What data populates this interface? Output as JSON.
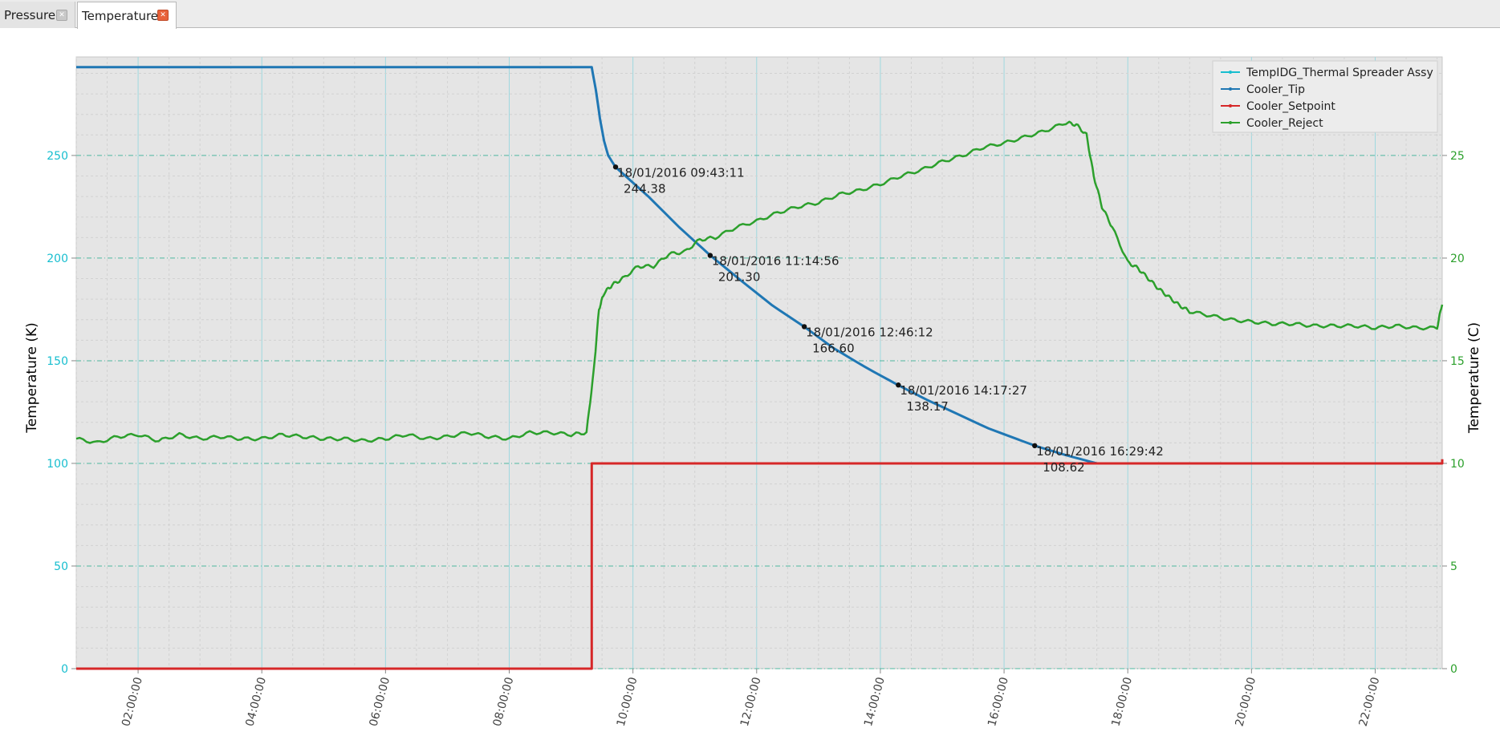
{
  "tabs": [
    {
      "label": "Pressure",
      "active": false,
      "close_icon": "close-icon"
    },
    {
      "label": "Temperature",
      "active": true,
      "close_icon": "close-icon"
    }
  ],
  "chart_data": {
    "type": "line",
    "title": "",
    "xlabel": "",
    "x_range": [
      "01:00:00",
      "23:05:00"
    ],
    "x_ticks": [
      "02:00:00",
      "04:00:00",
      "06:00:00",
      "08:00:00",
      "10:00:00",
      "12:00:00",
      "14:00:00",
      "16:00:00",
      "18:00:00",
      "20:00:00",
      "22:00:00"
    ],
    "left_axis": {
      "label": "Temperature (K)",
      "color": "#17becf",
      "range": [
        0,
        298
      ],
      "ticks": [
        "0",
        "50",
        "100",
        "150",
        "200",
        "250"
      ]
    },
    "right_axis": {
      "label": "Temperature (C)",
      "color": "#2ca02c",
      "range": [
        0,
        29.8
      ],
      "ticks": [
        "0",
        "5",
        "10",
        "15",
        "20",
        "25"
      ]
    },
    "grid": true,
    "legend": {
      "position": "top-right"
    },
    "series": [
      {
        "name": "TempIDG_Thermal Spreader Assy",
        "color": "#17becf",
        "axis": "left",
        "x": [],
        "y": []
      },
      {
        "name": "Cooler_Tip",
        "color": "#1f77b4",
        "axis": "left",
        "x": [
          "01:00",
          "09:20",
          "09:24",
          "09:28",
          "09:32",
          "09:36",
          "09:43",
          "10:15",
          "10:45",
          "11:15",
          "11:45",
          "12:15",
          "12:46",
          "13:15",
          "13:45",
          "14:17",
          "14:45",
          "15:15",
          "15:45",
          "16:30",
          "17:00",
          "17:30"
        ],
        "y": [
          293,
          293,
          282,
          268,
          257,
          250,
          244.4,
          230,
          215,
          201.3,
          189,
          177,
          166.6,
          156,
          147,
          138.2,
          131,
          124,
          117,
          108.6,
          104,
          100
        ]
      },
      {
        "name": "Cooler_Setpoint",
        "color": "#d62728",
        "axis": "left",
        "x": [
          "01:00",
          "09:20",
          "09:20",
          "23:05",
          "23:05"
        ],
        "y": [
          0,
          0,
          100,
          100,
          102
        ]
      },
      {
        "name": "Cooler_Reject",
        "color": "#2ca02c",
        "axis": "right",
        "x": [
          "01:00",
          "01:20",
          "01:40",
          "02:00",
          "02:20",
          "02:40",
          "03:00",
          "03:20",
          "03:40",
          "04:00",
          "04:20",
          "04:40",
          "05:00",
          "05:20",
          "05:40",
          "06:00",
          "06:20",
          "06:40",
          "07:00",
          "07:20",
          "07:40",
          "08:00",
          "08:20",
          "08:40",
          "09:00",
          "09:15",
          "09:22",
          "09:27",
          "09:32",
          "09:40",
          "09:50",
          "10:05",
          "10:20",
          "10:35",
          "10:50",
          "11:05",
          "11:20",
          "11:40",
          "12:00",
          "12:20",
          "12:40",
          "13:00",
          "13:20",
          "13:40",
          "14:00",
          "14:20",
          "14:40",
          "15:00",
          "15:20",
          "15:40",
          "16:00",
          "16:20",
          "16:40",
          "17:00",
          "17:10",
          "17:20",
          "17:27",
          "17:35",
          "17:45",
          "18:00",
          "18:10",
          "18:20",
          "18:30",
          "18:40",
          "18:50",
          "19:00",
          "19:20",
          "19:40",
          "20:00",
          "20:20",
          "20:40",
          "21:00",
          "21:20",
          "21:40",
          "22:00",
          "22:20",
          "22:40",
          "23:00",
          "23:05"
        ],
        "y": [
          11.2,
          11.0,
          11.3,
          11.4,
          11.1,
          11.4,
          11.2,
          11.3,
          11.2,
          11.2,
          11.4,
          11.3,
          11.2,
          11.2,
          11.1,
          11.2,
          11.4,
          11.2,
          11.3,
          11.5,
          11.3,
          11.2,
          11.5,
          11.5,
          11.4,
          11.5,
          14.5,
          17.5,
          18.3,
          18.7,
          19.0,
          19.6,
          19.6,
          20.2,
          20.3,
          20.9,
          21.0,
          21.5,
          21.8,
          22.2,
          22.5,
          22.7,
          23.1,
          23.3,
          23.6,
          24.0,
          24.3,
          24.7,
          25.0,
          25.4,
          25.6,
          25.9,
          26.2,
          26.6,
          26.5,
          26.0,
          24.0,
          22.5,
          21.5,
          19.8,
          19.5,
          19.0,
          18.5,
          18.1,
          17.7,
          17.4,
          17.2,
          17.0,
          16.9,
          16.8,
          16.8,
          16.7,
          16.7,
          16.7,
          16.6,
          16.7,
          16.6,
          16.6,
          17.8
        ]
      }
    ],
    "annotations": [
      {
        "label": "18/01/2016 09:43:11",
        "value": "244.38",
        "x": "09:43:11",
        "y": 244.38
      },
      {
        "label": "18/01/2016 11:14:56",
        "value": "201.30",
        "x": "11:14:56",
        "y": 201.3
      },
      {
        "label": "18/01/2016 12:46:12",
        "value": "166.60",
        "x": "12:46:12",
        "y": 166.6
      },
      {
        "label": "18/01/2016 14:17:27",
        "value": "138.17",
        "x": "14:17:27",
        "y": 138.17
      },
      {
        "label": "18/01/2016 16:29:42",
        "value": "108.62",
        "x": "16:29:42",
        "y": 108.62
      }
    ]
  }
}
